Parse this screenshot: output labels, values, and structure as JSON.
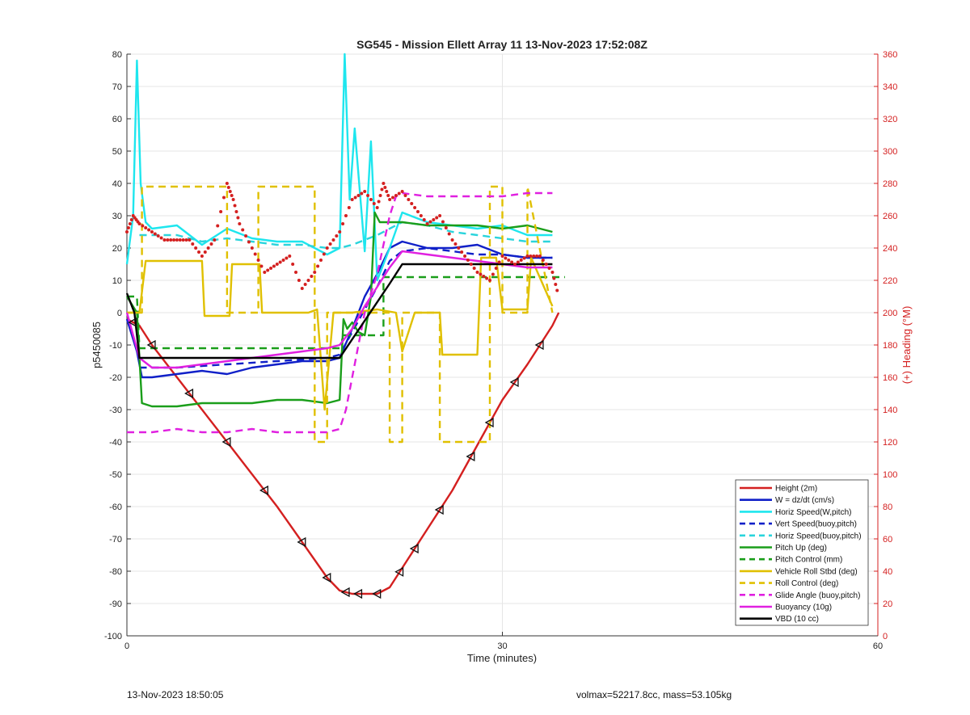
{
  "chart_data": {
    "type": "line",
    "title": "SG545 - Mission Ellett Array 11 13-Nov-2023 17:52:08Z",
    "xlabel": "Time (minutes)",
    "ylabel": "p5450085",
    "y2label": "(+) Heading (°M)",
    "xlim": [
      0,
      60
    ],
    "ylim": [
      -100,
      80
    ],
    "y2lim": [
      0,
      360
    ],
    "xticks": [
      "0",
      "30",
      "60"
    ],
    "yticks": [
      "80",
      "70",
      "60",
      "50",
      "40",
      "30",
      "20",
      "10",
      "0",
      "-10",
      "-20",
      "-30",
      "-40",
      "-50",
      "-60",
      "-70",
      "-80",
      "-90",
      "-100"
    ],
    "y2ticks": [
      "360",
      "340",
      "320",
      "300",
      "280",
      "260",
      "240",
      "220",
      "200",
      "180",
      "160",
      "140",
      "120",
      "100",
      "80",
      "60",
      "40",
      "20",
      "0"
    ],
    "grid": true,
    "legend_position": "bottom-right",
    "series": [
      {
        "name": "Height (2m)",
        "color": "#d42020",
        "style": "solid",
        "x": [
          0,
          1,
          2,
          4,
          6,
          8,
          10,
          12,
          14,
          16,
          17,
          18,
          19,
          20,
          21,
          22,
          24,
          26,
          28,
          30,
          32,
          34,
          34.5
        ],
        "y": [
          -2,
          -4,
          -10,
          -20,
          -30,
          -40,
          -50,
          -60,
          -71,
          -82,
          -86,
          -87,
          -87,
          -87,
          -85,
          -79,
          -67,
          -55,
          -41,
          -27,
          -16,
          -4,
          0
        ]
      },
      {
        "name": "W = dz/dt (cm/s)",
        "color": "#1020c8",
        "style": "solid",
        "x": [
          0,
          0.8,
          1.2,
          2,
          4,
          6,
          8,
          10,
          12,
          14,
          16,
          17,
          18,
          19,
          20,
          21,
          22,
          24,
          26,
          28,
          30,
          32,
          34
        ],
        "y": [
          -2,
          -12,
          -20,
          -20,
          -19,
          -18,
          -19,
          -17,
          -16,
          -15,
          -15,
          -14,
          -5,
          5,
          12,
          20,
          22,
          20,
          20,
          21,
          18,
          17,
          17
        ]
      },
      {
        "name": "Horiz Speed(W,pitch)",
        "color": "#1ee6ee",
        "style": "solid",
        "x": [
          0,
          0.5,
          0.8,
          1.1,
          1.5,
          2,
          4,
          6,
          8,
          10,
          12,
          14,
          16,
          17,
          17.4,
          17.8,
          18.2,
          19,
          19.5,
          20,
          21,
          22,
          24,
          26,
          28,
          30,
          32,
          34
        ],
        "y": [
          15,
          30,
          78,
          40,
          28,
          26,
          27,
          21,
          26,
          23,
          22,
          22,
          18,
          20,
          80,
          35,
          57,
          19,
          53,
          10,
          20,
          31,
          28,
          27,
          26,
          27,
          24,
          24
        ]
      },
      {
        "name": "Vert Speed(buoy,pitch)",
        "color": "#1020c8",
        "style": "dashed",
        "x": [
          1,
          4,
          8,
          12,
          16,
          17,
          18,
          20,
          21,
          22,
          24,
          26,
          28,
          30,
          32,
          34
        ],
        "y": [
          -17,
          -17,
          -16,
          -15,
          -14,
          -13,
          -6,
          8,
          16,
          19,
          20,
          19,
          18,
          18,
          17,
          17
        ]
      },
      {
        "name": "Horiz Speed(buoy,pitch)",
        "color": "#2ad4dc",
        "style": "dashed",
        "x": [
          1,
          4,
          6,
          8,
          10,
          12,
          14,
          16,
          17,
          18,
          20,
          21,
          22,
          24,
          26,
          28,
          30,
          32,
          34
        ],
        "y": [
          24,
          24,
          22,
          23,
          22,
          21,
          21,
          20,
          20,
          21,
          24,
          26,
          28,
          27,
          25,
          24,
          23,
          22,
          22
        ]
      },
      {
        "name": "Pitch Up (deg)",
        "color": "#1a9e1a",
        "style": "solid",
        "x": [
          0,
          0.8,
          1.2,
          2,
          4,
          6,
          8,
          10,
          12,
          14,
          16,
          17,
          17.3,
          17.6,
          18,
          18.5,
          19,
          19.5,
          19.8,
          20.2,
          21,
          22,
          24,
          26,
          28,
          30,
          32,
          34
        ],
        "y": [
          5,
          0,
          -28,
          -29,
          -29,
          -28,
          -28,
          -28,
          -27,
          -27,
          -28,
          -27,
          -2,
          -5,
          -3,
          -6,
          -7,
          5,
          31,
          28,
          28,
          28,
          27,
          27,
          27,
          26,
          27,
          25
        ]
      },
      {
        "name": "Pitch Control (mm)",
        "color": "#1a9e1a",
        "style": "dashed",
        "x": [
          0,
          0.8,
          1,
          17.2,
          17.2,
          20.5,
          20.5,
          35
        ],
        "y": [
          5,
          5,
          -11,
          -11,
          -7,
          -7,
          11,
          11
        ]
      },
      {
        "name": "Vehicle Roll Stbd (deg)",
        "color": "#e0c000",
        "style": "solid",
        "x": [
          0,
          1,
          1.5,
          6,
          6.2,
          8.2,
          8.4,
          10.6,
          10.8,
          14.5,
          15.2,
          15.8,
          16.5,
          18,
          20,
          21.5,
          22,
          23,
          24,
          25,
          25.2,
          28,
          28.3,
          29.5,
          30,
          32,
          32.3,
          34
        ],
        "y": [
          0,
          0,
          16,
          16,
          -1,
          -1,
          15,
          15,
          0,
          0,
          1,
          -30,
          0,
          0,
          1,
          0,
          -12,
          0,
          0,
          0,
          -13,
          -13,
          17,
          17,
          1,
          1,
          17,
          2
        ]
      },
      {
        "name": "Roll Control (deg)",
        "color": "#e0c000",
        "style": "dashed",
        "x": [
          0,
          1.2,
          1.2,
          8,
          8,
          10.5,
          10.5,
          15,
          15,
          16,
          16,
          21,
          21,
          22,
          22,
          23,
          23,
          25,
          25,
          29,
          29,
          30,
          30,
          32,
          32,
          34
        ],
        "y": [
          0,
          0,
          39,
          39,
          0,
          0,
          39,
          39,
          -40,
          -40,
          0,
          0,
          -40,
          -40,
          0,
          0,
          0,
          0,
          -40,
          -40,
          39,
          39,
          0,
          0,
          39,
          0
        ]
      },
      {
        "name": "Glide Angle (buoy,pitch)",
        "color": "#e020e0",
        "style": "dashed",
        "x": [
          0,
          1,
          2,
          4,
          6,
          8,
          10,
          12,
          14,
          16,
          17,
          17.5,
          18,
          19,
          20,
          21,
          21.5,
          22,
          24,
          26,
          28,
          30,
          32,
          34
        ],
        "y": [
          -37,
          -37,
          -37,
          -36,
          -37,
          -37,
          -36,
          -37,
          -37,
          -37,
          -36,
          -30,
          -20,
          0,
          12,
          30,
          36,
          37,
          36,
          36,
          36,
          36,
          37,
          37
        ]
      },
      {
        "name": "Buoyancy (10g)",
        "color": "#e020e0",
        "style": "solid",
        "x": [
          0,
          1,
          2,
          4,
          6,
          8,
          10,
          12,
          14,
          16,
          17,
          18,
          19,
          20,
          21,
          22,
          24,
          26,
          28,
          30,
          32,
          34
        ],
        "y": [
          0,
          -14,
          -17,
          -17,
          -16,
          -15,
          -14,
          -13,
          -12,
          -11,
          -10,
          -5,
          2,
          8,
          14,
          19,
          18,
          17,
          16,
          15,
          14,
          14
        ]
      },
      {
        "name": "VBD (10 cc)",
        "color": "#000000",
        "style": "solid",
        "x": [
          0,
          0.6,
          1,
          8,
          12,
          16,
          17,
          21,
          22,
          26,
          30,
          32,
          34
        ],
        "y": [
          6,
          0,
          -14,
          -14,
          -14,
          -14,
          -14,
          9,
          15,
          15,
          15,
          15,
          15
        ]
      }
    ],
    "heading_series": {
      "name": "Heading (°M)",
      "color": "#d42020",
      "axis": "right",
      "x": [
        0,
        0.5,
        1,
        2,
        3,
        4,
        5,
        6,
        7,
        8,
        8.5,
        9,
        10,
        11,
        12,
        13,
        14,
        15,
        16,
        17,
        18,
        19,
        20,
        20.5,
        21,
        22,
        23,
        24,
        25,
        26,
        27,
        28,
        29,
        30,
        31,
        32,
        33,
        34,
        34.5
      ],
      "y": [
        250,
        260,
        255,
        250,
        245,
        245,
        245,
        235,
        245,
        280,
        270,
        255,
        240,
        225,
        230,
        235,
        215,
        225,
        240,
        250,
        270,
        275,
        265,
        280,
        270,
        275,
        265,
        255,
        260,
        245,
        235,
        225,
        220,
        235,
        230,
        235,
        235,
        225,
        210
      ]
    },
    "height_markers_x": [
      0.5,
      2,
      5,
      8,
      11,
      14,
      16,
      17.5,
      18.5,
      20,
      21.8,
      23,
      25,
      27.5,
      29,
      31,
      33
    ]
  },
  "footer": {
    "timestamp": "13-Nov-2023 18:50:05",
    "volmax": "volmax=52217.8cc, mass=53.105kg"
  }
}
